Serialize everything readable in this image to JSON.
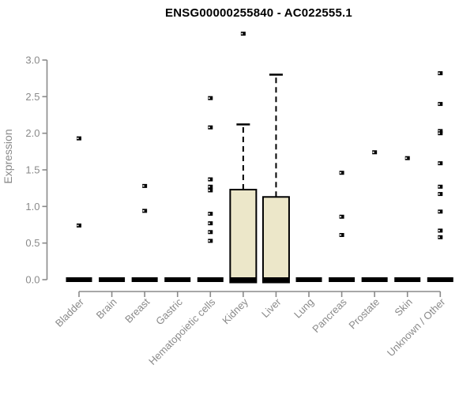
{
  "header": {
    "title": "ENSG00000255840 - AC022555.1"
  },
  "colors": {
    "axis": "#8a8a8a",
    "label_text": "#8a8a8a",
    "title_text": "#000000",
    "box_fill": "#ece7c9",
    "ink": "#000000",
    "background": "#ffffff"
  },
  "chart_data": {
    "type": "boxplot",
    "title": "ENSG00000255840 - AC022555.1",
    "xlabel": "",
    "ylabel": "Expression",
    "ylim": [
      0.0,
      3.0
    ],
    "yticks": [
      0.0,
      0.5,
      1.0,
      1.5,
      2.0,
      2.5,
      3.0
    ],
    "grid": false,
    "legend": "none",
    "categories": [
      "Bladder",
      "Brain",
      "Breast",
      "Gastric",
      "Hematopoietic cells",
      "Kidney",
      "Liver",
      "Lung",
      "Pancreas",
      "Prostate",
      "Skin",
      "Unknown / Other"
    ],
    "boxes": [
      {
        "category": "Bladder",
        "median": 0,
        "q1": 0,
        "q3": 0,
        "whisker_low": 0,
        "whisker_high": 0,
        "outliers": [
          1.93,
          0.74
        ]
      },
      {
        "category": "Brain",
        "median": 0,
        "q1": 0,
        "q3": 0,
        "whisker_low": 0,
        "whisker_high": 0,
        "outliers": []
      },
      {
        "category": "Breast",
        "median": 0,
        "q1": 0,
        "q3": 0,
        "whisker_low": 0,
        "whisker_high": 0,
        "outliers": [
          1.28,
          0.94
        ]
      },
      {
        "category": "Gastric",
        "median": 0,
        "q1": 0,
        "q3": 0,
        "whisker_low": 0,
        "whisker_high": 0,
        "outliers": []
      },
      {
        "category": "Hematopoietic cells",
        "median": 0,
        "q1": 0,
        "q3": 0,
        "whisker_low": 0,
        "whisker_high": 0,
        "outliers": [
          2.48,
          2.08,
          1.37,
          1.27,
          1.22,
          0.9,
          0.77,
          0.65,
          0.53
        ]
      },
      {
        "category": "Kidney",
        "median": 0,
        "q1": 0,
        "q3": 1.23,
        "whisker_low": 0,
        "whisker_high": 2.12,
        "outliers": [
          3.36
        ]
      },
      {
        "category": "Liver",
        "median": 0,
        "q1": 0,
        "q3": 1.13,
        "whisker_low": 0,
        "whisker_high": 2.8,
        "outliers": []
      },
      {
        "category": "Lung",
        "median": 0,
        "q1": 0,
        "q3": 0,
        "whisker_low": 0,
        "whisker_high": 0,
        "outliers": []
      },
      {
        "category": "Pancreas",
        "median": 0,
        "q1": 0,
        "q3": 0,
        "whisker_low": 0,
        "whisker_high": 0,
        "outliers": [
          1.46,
          0.86,
          0.61
        ]
      },
      {
        "category": "Prostate",
        "median": 0,
        "q1": 0,
        "q3": 0,
        "whisker_low": 0,
        "whisker_high": 0,
        "outliers": [
          1.74
        ]
      },
      {
        "category": "Skin",
        "median": 0,
        "q1": 0,
        "q3": 0,
        "whisker_low": 0,
        "whisker_high": 0,
        "outliers": [
          1.66
        ]
      },
      {
        "category": "Unknown / Other",
        "median": 0,
        "q1": 0,
        "q3": 0,
        "whisker_low": 0,
        "whisker_high": 0,
        "outliers": [
          2.82,
          2.4,
          2.03,
          2.0,
          1.59,
          1.27,
          1.17,
          0.93,
          0.67,
          0.58
        ]
      }
    ]
  }
}
